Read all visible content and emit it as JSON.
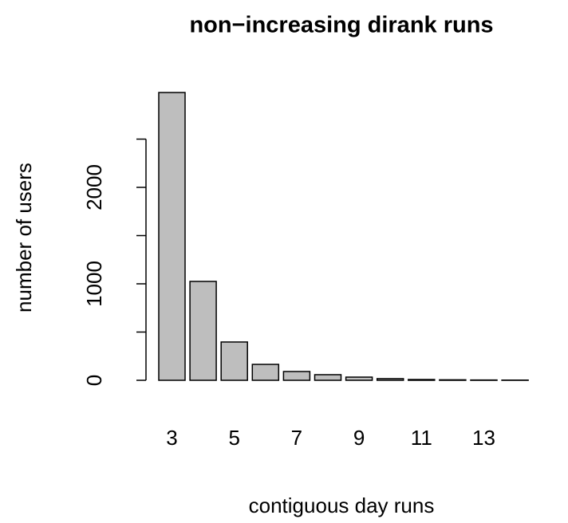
{
  "chart_data": {
    "type": "bar",
    "title": "non−increasing dirank runs",
    "xlabel": "contiguous day runs",
    "ylabel": "number of users",
    "categories": [
      "3",
      null,
      "5",
      null,
      "7",
      null,
      "9",
      null,
      "11",
      null,
      "13",
      null
    ],
    "values": [
      2983,
      1025,
      397,
      165,
      91,
      58,
      33,
      17,
      8,
      5,
      3,
      2
    ],
    "color": "#bebebe",
    "ylim": [
      0,
      3000
    ],
    "yticks": [
      0,
      1000,
      2000
    ],
    "yticks_unlabeled": [
      500,
      1500,
      2500
    ]
  }
}
